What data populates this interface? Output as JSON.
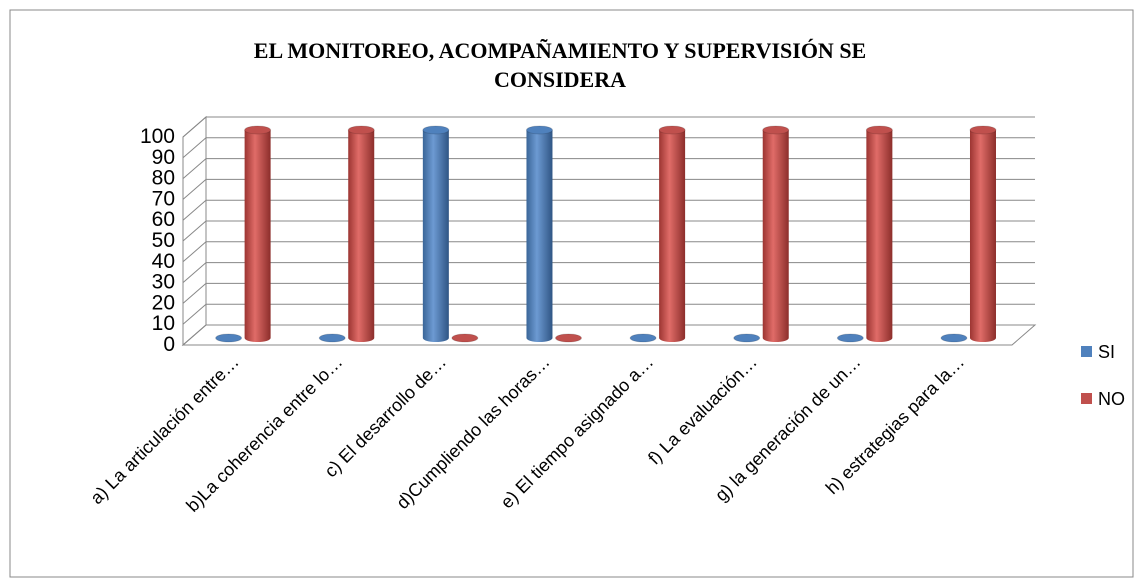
{
  "chart_data": {
    "type": "bar3d",
    "title": "EL MONITOREO, ACOMPAÑAMIENTO Y SUPERVISIÓN SE CONSIDERA",
    "categories": [
      "a) La articulación entre…",
      "b)La coherencia entre lo…",
      "c) El desarrollo de…",
      "d)Cumpliendo las horas…",
      "e) El tiempo asignado a…",
      "f) La evaluación…",
      "g) la generación de un…",
      "h) estrategias para la…"
    ],
    "series": [
      {
        "name": "SI",
        "color": "#4f81bd",
        "values": [
          0,
          0,
          100,
          100,
          0,
          0,
          0,
          0
        ]
      },
      {
        "name": "NO",
        "color": "#c0504d",
        "values": [
          100,
          100,
          0,
          0,
          100,
          100,
          100,
          100
        ]
      }
    ],
    "ylim": [
      0,
      100
    ],
    "yticks": [
      0,
      10,
      20,
      30,
      40,
      50,
      60,
      70,
      80,
      90,
      100
    ],
    "grid": true,
    "legend": "right"
  }
}
